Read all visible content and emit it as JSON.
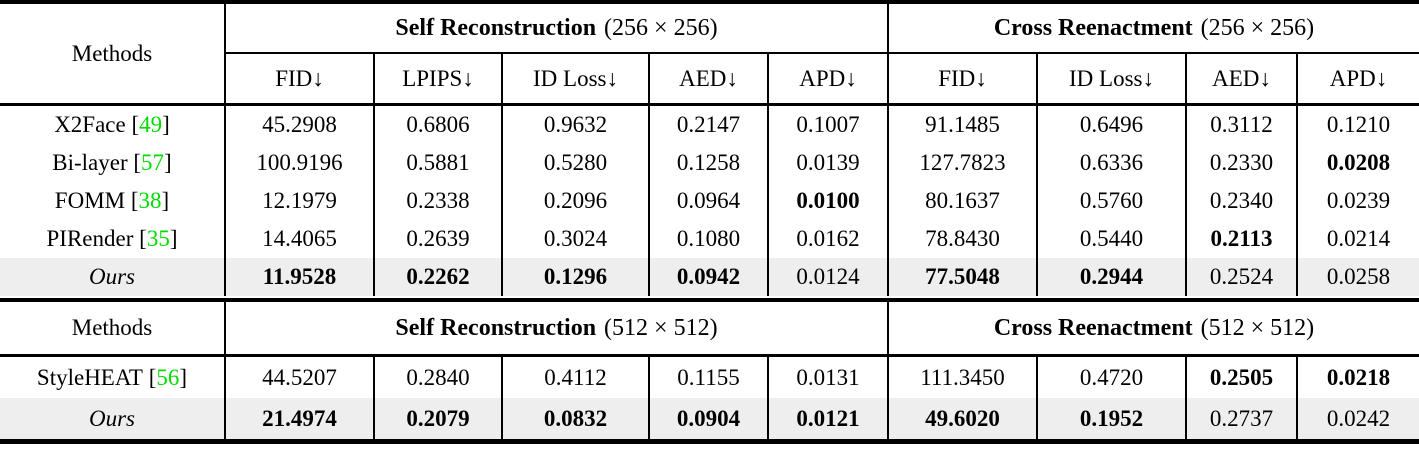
{
  "colors": {
    "citation_green": "#00DC00",
    "ours_row_bg": "#EEEEEE",
    "rule_black": "#000000"
  },
  "cite_open": "[",
  "cite_close": "]",
  "sections": [
    {
      "methods_label": "Methods",
      "groups": [
        {
          "title_bold": "Self Reconstruction",
          "title_size": "(256 × 256)"
        },
        {
          "title_bold": "Cross Reenactment",
          "title_size": "(256 × 256)"
        }
      ],
      "metric_headers": [
        "FID↓",
        "LPIPS↓",
        "ID Loss↓",
        "AED↓",
        "APD↓",
        "FID↓",
        "ID Loss↓",
        "AED↓",
        "APD↓"
      ],
      "rows": [
        {
          "method": "X2Face",
          "cite": "49",
          "italic": false,
          "highlight": false,
          "values": [
            {
              "v": "45.2908",
              "bold": false
            },
            {
              "v": "0.6806",
              "bold": false
            },
            {
              "v": "0.9632",
              "bold": false
            },
            {
              "v": "0.2147",
              "bold": false
            },
            {
              "v": "0.1007",
              "bold": false
            },
            {
              "v": "91.1485",
              "bold": false
            },
            {
              "v": "0.6496",
              "bold": false
            },
            {
              "v": "0.3112",
              "bold": false
            },
            {
              "v": "0.1210",
              "bold": false
            }
          ]
        },
        {
          "method": "Bi-layer",
          "cite": "57",
          "italic": false,
          "highlight": false,
          "values": [
            {
              "v": "100.9196",
              "bold": false
            },
            {
              "v": "0.5881",
              "bold": false
            },
            {
              "v": "0.5280",
              "bold": false
            },
            {
              "v": "0.1258",
              "bold": false
            },
            {
              "v": "0.0139",
              "bold": false
            },
            {
              "v": "127.7823",
              "bold": false
            },
            {
              "v": "0.6336",
              "bold": false
            },
            {
              "v": "0.2330",
              "bold": false
            },
            {
              "v": "0.0208",
              "bold": true
            }
          ]
        },
        {
          "method": "FOMM",
          "cite": "38",
          "italic": false,
          "highlight": false,
          "values": [
            {
              "v": "12.1979",
              "bold": false
            },
            {
              "v": "0.2338",
              "bold": false
            },
            {
              "v": "0.2096",
              "bold": false
            },
            {
              "v": "0.0964",
              "bold": false
            },
            {
              "v": "0.0100",
              "bold": true
            },
            {
              "v": "80.1637",
              "bold": false
            },
            {
              "v": "0.5760",
              "bold": false
            },
            {
              "v": "0.2340",
              "bold": false
            },
            {
              "v": "0.0239",
              "bold": false
            }
          ]
        },
        {
          "method": "PIRender",
          "cite": "35",
          "italic": false,
          "highlight": false,
          "values": [
            {
              "v": "14.4065",
              "bold": false
            },
            {
              "v": "0.2639",
              "bold": false
            },
            {
              "v": "0.3024",
              "bold": false
            },
            {
              "v": "0.1080",
              "bold": false
            },
            {
              "v": "0.0162",
              "bold": false
            },
            {
              "v": "78.8430",
              "bold": false
            },
            {
              "v": "0.5440",
              "bold": false
            },
            {
              "v": "0.2113",
              "bold": true
            },
            {
              "v": "0.0214",
              "bold": false
            }
          ]
        },
        {
          "method": "Ours",
          "cite": "",
          "italic": true,
          "highlight": true,
          "values": [
            {
              "v": "11.9528",
              "bold": true
            },
            {
              "v": "0.2262",
              "bold": true
            },
            {
              "v": "0.1296",
              "bold": true
            },
            {
              "v": "0.0942",
              "bold": true
            },
            {
              "v": "0.0124",
              "bold": false
            },
            {
              "v": "77.5048",
              "bold": true
            },
            {
              "v": "0.2944",
              "bold": true
            },
            {
              "v": "0.2524",
              "bold": false
            },
            {
              "v": "0.0258",
              "bold": false
            }
          ]
        }
      ]
    },
    {
      "methods_label": "Methods",
      "groups": [
        {
          "title_bold": "Self Reconstruction",
          "title_size": "(512 × 512)"
        },
        {
          "title_bold": "Cross Reenactment",
          "title_size": "(512 × 512)"
        }
      ],
      "rows": [
        {
          "method": "StyleHEAT",
          "cite": "56",
          "italic": false,
          "highlight": false,
          "values": [
            {
              "v": "44.5207",
              "bold": false
            },
            {
              "v": "0.2840",
              "bold": false
            },
            {
              "v": "0.4112",
              "bold": false
            },
            {
              "v": "0.1155",
              "bold": false
            },
            {
              "v": "0.0131",
              "bold": false
            },
            {
              "v": "111.3450",
              "bold": false
            },
            {
              "v": "0.4720",
              "bold": false
            },
            {
              "v": "0.2505",
              "bold": true
            },
            {
              "v": "0.0218",
              "bold": true
            }
          ]
        },
        {
          "method": "Ours",
          "cite": "",
          "italic": true,
          "highlight": true,
          "values": [
            {
              "v": "21.4974",
              "bold": true
            },
            {
              "v": "0.2079",
              "bold": true
            },
            {
              "v": "0.0832",
              "bold": true
            },
            {
              "v": "0.0904",
              "bold": true
            },
            {
              "v": "0.0121",
              "bold": true
            },
            {
              "v": "49.6020",
              "bold": true
            },
            {
              "v": "0.1952",
              "bold": true
            },
            {
              "v": "0.2737",
              "bold": false
            },
            {
              "v": "0.0242",
              "bold": false
            }
          ]
        }
      ]
    }
  ]
}
